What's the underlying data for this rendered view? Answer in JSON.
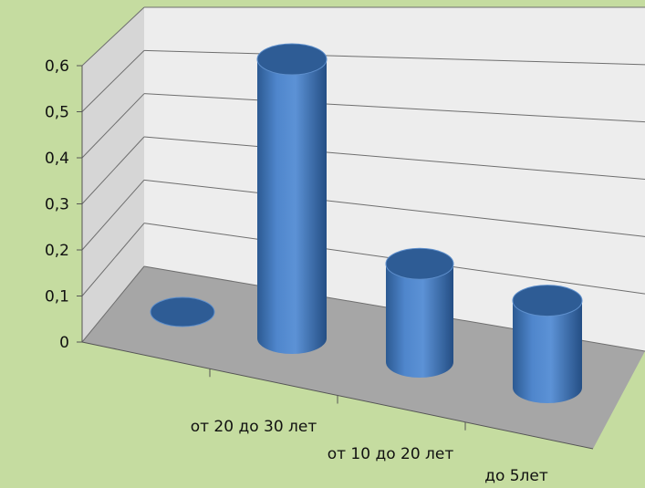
{
  "colors": {
    "background": "#C5DCA0",
    "back_wall": "#EDEDED",
    "side_wall": "#D6D6D6",
    "floor": "#A6A6A6",
    "gridline": "#6E6E6E",
    "bar": "#4A7EC2",
    "bar_top": "#2E5C95"
  },
  "chart_data": {
    "type": "bar",
    "style": "3d-cylinder",
    "categories": [
      "",
      "от 20 до 30 лет",
      "от 10 до 20 лет",
      "до 5лет"
    ],
    "values": [
      0,
      0.6,
      0.22,
      0.18
    ],
    "ylim": [
      0,
      0.6
    ],
    "yticks": [
      "0",
      "0,1",
      "0,2",
      "0,3",
      "0,4",
      "0,5",
      "0,6"
    ],
    "grid": true,
    "legend": "none"
  }
}
